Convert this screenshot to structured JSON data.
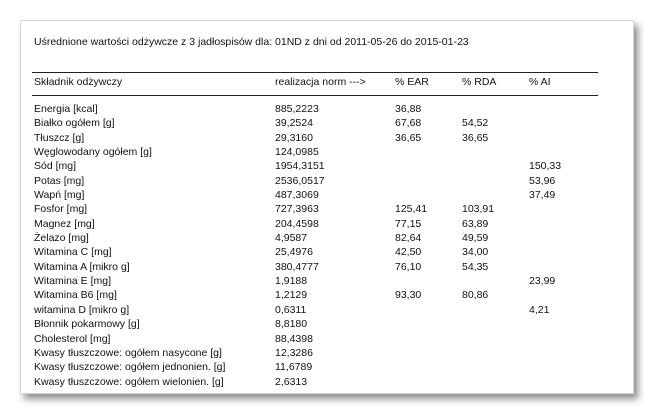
{
  "report": {
    "title": "Uśrednione wartości odżywcze z 3 jadłospisów dla:  01ND  z dni od 2011-05-26 do 2015-01-23",
    "columns": [
      "Składnik odżywczy",
      "realizacja norm --->",
      "% EAR",
      "% RDA",
      "% AI"
    ],
    "rows": [
      [
        "Energia [kcal]",
        "885,2223",
        "36,88",
        "",
        ""
      ],
      [
        "Białko ogółem [g]",
        "39,2524",
        "67,68",
        "54,52",
        ""
      ],
      [
        "Tłuszcz [g]",
        "29,3160",
        "36,65",
        "36,65",
        ""
      ],
      [
        "Węglowodany ogółem [g]",
        "124,0985",
        "",
        "",
        ""
      ],
      [
        "Sód [mg]",
        "1954,3151",
        "",
        "",
        "150,33"
      ],
      [
        "Potas [mg]",
        "2536,0517",
        "",
        "",
        "53,96"
      ],
      [
        "Wapń [mg]",
        "487,3069",
        "",
        "",
        "37,49"
      ],
      [
        "Fosfor [mg]",
        "727,3963",
        "125,41",
        "103,91",
        ""
      ],
      [
        "Magnez [mg]",
        "204,4598",
        "77,15",
        "63,89",
        ""
      ],
      [
        "Żelazo [mg]",
        "4,9587",
        "82,64",
        "49,59",
        ""
      ],
      [
        "Witamina C [mg]",
        "25,4976",
        "42,50",
        "34,00",
        ""
      ],
      [
        "Witamina A [mikro g]",
        "380,4777",
        "76,10",
        "54,35",
        ""
      ],
      [
        "Witamina E [mg]",
        "1,9188",
        "",
        "",
        "23,99"
      ],
      [
        "Witamina B6 [mg]",
        "1,2129",
        "93,30",
        "80,86",
        ""
      ],
      [
        "witamina D [mikro g]",
        "0,6311",
        "",
        "",
        "4,21"
      ],
      [
        "Błonnik pokarmowy [g]",
        "8,8180",
        "",
        "",
        ""
      ],
      [
        "Cholesterol [mg]",
        "88,4398",
        "",
        "",
        ""
      ],
      [
        "Kwasy tłuszczowe: ogółem nasycone [g]",
        "12,3286",
        "",
        "",
        ""
      ],
      [
        "Kwasy tłuszczowe: ogółem jednonien. [g]",
        "11,6789",
        "",
        "",
        ""
      ],
      [
        "Kwasy tłuszczowe: ogółem wielonien. [g]",
        "2,6313",
        "",
        "",
        ""
      ]
    ]
  }
}
